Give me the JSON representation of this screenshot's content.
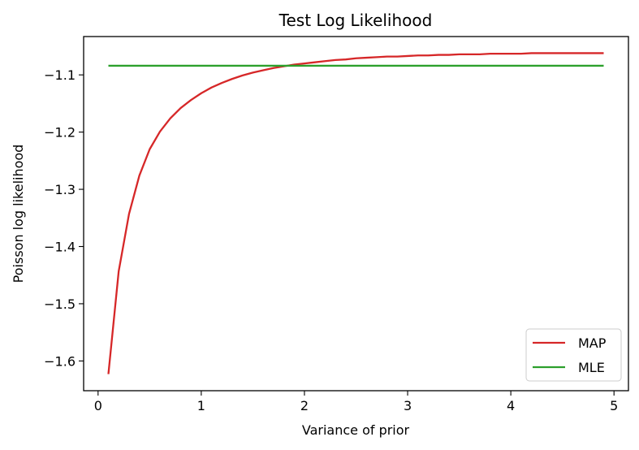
{
  "chart_data": {
    "type": "line",
    "title": "Test Log Likelihood",
    "xlabel": "Variance of prior",
    "ylabel": "Poisson log likelihood",
    "xlim": [
      -0.14,
      5.14
    ],
    "ylim": [
      -1.652,
      -1.033
    ],
    "xticks": [
      0,
      1,
      2,
      3,
      4,
      5
    ],
    "yticks": [
      -1.6,
      -1.5,
      -1.4,
      -1.3,
      -1.2,
      -1.1
    ],
    "ytick_labels": [
      "−1.6",
      "−1.5",
      "−1.4",
      "−1.3",
      "−1.2",
      "−1.1"
    ],
    "grid": false,
    "legend_position": "bottom-right",
    "series": [
      {
        "name": "MAP",
        "color": "#d62728",
        "x": [
          0.1,
          0.2,
          0.3,
          0.4,
          0.5,
          0.6,
          0.7,
          0.8,
          0.9,
          1.0,
          1.1,
          1.2,
          1.3,
          1.4,
          1.5,
          1.6,
          1.7,
          1.8,
          1.9,
          2.0,
          2.1,
          2.2,
          2.3,
          2.4,
          2.5,
          2.6,
          2.7,
          2.8,
          2.9,
          3.0,
          3.1,
          3.2,
          3.3,
          3.4,
          3.5,
          3.6,
          3.7,
          3.8,
          3.9,
          4.0,
          4.1,
          4.2,
          4.3,
          4.4,
          4.5,
          4.6,
          4.7,
          4.8,
          4.9
        ],
        "values": [
          -1.623,
          -1.443,
          -1.343,
          -1.276,
          -1.23,
          -1.199,
          -1.176,
          -1.158,
          -1.144,
          -1.132,
          -1.122,
          -1.114,
          -1.107,
          -1.101,
          -1.096,
          -1.092,
          -1.088,
          -1.085,
          -1.082,
          -1.08,
          -1.078,
          -1.076,
          -1.074,
          -1.073,
          -1.071,
          -1.07,
          -1.069,
          -1.068,
          -1.068,
          -1.067,
          -1.066,
          -1.066,
          -1.065,
          -1.065,
          -1.064,
          -1.064,
          -1.064,
          -1.063,
          -1.063,
          -1.063,
          -1.063,
          -1.062,
          -1.062,
          -1.062,
          -1.062,
          -1.062,
          -1.062,
          -1.062,
          -1.062
        ]
      },
      {
        "name": "MLE",
        "color": "#2ca02c",
        "x": [
          0.1,
          4.9
        ],
        "values": [
          -1.084,
          -1.084
        ]
      }
    ]
  }
}
